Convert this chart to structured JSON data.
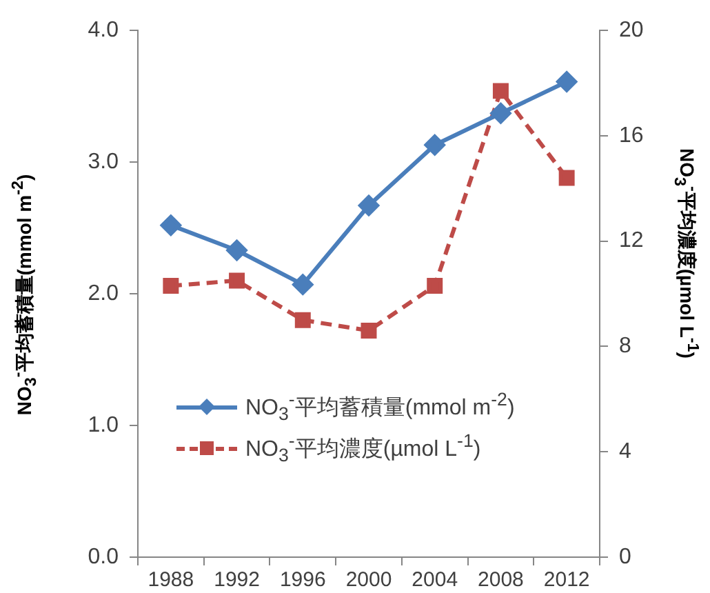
{
  "chart_data": {
    "type": "line",
    "ylabel": "NO$_{3}$$^{-}$平均蓄積量(mmol m$^{-2}$)",
    "y2label": "NO$_{3}$$^{-}$平均濃度(µmol  L$^{-1}$)",
    "categories": [
      "1988",
      "1992",
      "1996",
      "2000",
      "2004",
      "2008",
      "2012"
    ],
    "series": [
      {
        "name": "NO$_{3}$$^{-}$平均蓄積量(mmol m$^{-2}$)",
        "color": "#4a7ebb",
        "marker": "diamond",
        "line_style": "solid",
        "values": [
          2.52,
          2.33,
          2.07,
          2.67,
          3.13,
          3.37,
          3.61
        ]
      },
      {
        "name": "NO$_{3}$$^{-}$平均濃度(µmol L$^{-1}$)",
        "color": "#be4b48",
        "marker": "square",
        "line_style": "dashed",
        "axis": "y2",
        "values": [
          10.3,
          10.5,
          9.0,
          8.6,
          10.3,
          17.7,
          14.4
        ]
      }
    ],
    "ylim": [
      0,
      4
    ],
    "yticks": [
      {
        "value": 0,
        "label": "0.0"
      },
      {
        "value": 1,
        "label": "1.0"
      },
      {
        "value": 2,
        "label": "2.0"
      },
      {
        "value": 3,
        "label": "3.0"
      },
      {
        "value": 4,
        "label": "4.0"
      }
    ],
    "y2lim": [
      0,
      20
    ],
    "y2ticks": [
      0,
      4,
      8,
      12,
      16,
      20
    ],
    "legend": "bottom"
  }
}
